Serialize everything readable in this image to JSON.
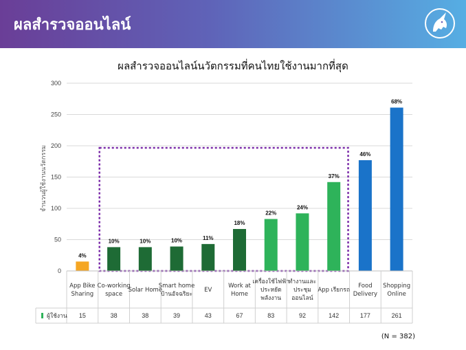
{
  "header": {
    "title": "ผลสำรวจออนไลน์"
  },
  "chart_data": {
    "type": "bar",
    "title": "ผลสำรวจออนไลน์นวัตกรรมที่คนไทยใช้งานมากที่สุด",
    "ylabel": "จำนวนผู้ใช้งานนวัตกรรม",
    "ylim": [
      0,
      300
    ],
    "yticks": [
      0,
      50,
      100,
      150,
      200,
      250,
      300
    ],
    "grid": true,
    "categories": [
      [
        "App Bike",
        "Sharing"
      ],
      [
        "Co-working",
        "space"
      ],
      [
        "Solar Home"
      ],
      [
        "Smart home",
        "บ้านอัจฉริยะ"
      ],
      [
        "EV"
      ],
      [
        "Work at",
        "Home"
      ],
      [
        "เครื่องใช้ไฟฟ้า",
        "ประหยัด",
        "พลังงาน"
      ],
      [
        "ทำงานและ",
        "ประชุม",
        "ออนไลน์"
      ],
      [
        "App เรียกรถ"
      ],
      [
        "Food",
        "Delivery"
      ],
      [
        "Shopping",
        "Online"
      ]
    ],
    "series": [
      {
        "name": "ผู้ใช้งาน",
        "values": [
          15,
          38,
          38,
          39,
          43,
          67,
          83,
          92,
          142,
          177,
          261
        ],
        "labels": [
          "4%",
          "10%",
          "10%",
          "10%",
          "11%",
          "18%",
          "22%",
          "24%",
          "37%",
          "46%",
          "68%"
        ],
        "colors": [
          "#f5a623",
          "#1e6b35",
          "#1e6b35",
          "#1e6b35",
          "#1e6b35",
          "#1e6b35",
          "#2eb35a",
          "#2eb35a",
          "#2eb35a",
          "#1a73c9",
          "#1a73c9"
        ]
      }
    ],
    "table_values": [
      "15",
      "38",
      "38",
      "39",
      "43",
      "67",
      "83",
      "92",
      "142",
      "177",
      "261"
    ],
    "legend_color": "#2eb35a",
    "highlight_box_color": "#7a2aa8"
  },
  "note": "(N = 382)"
}
